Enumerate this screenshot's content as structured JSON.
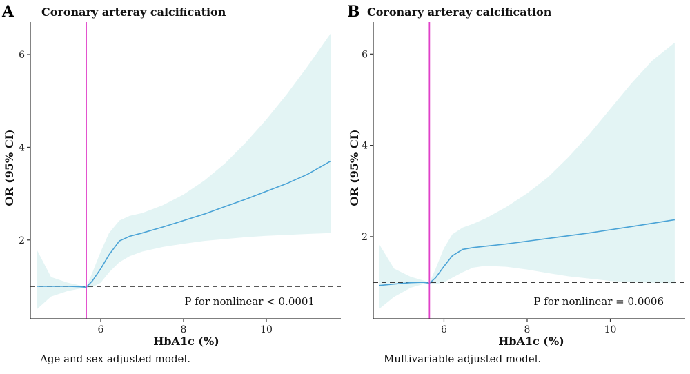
{
  "colors": {
    "ci_band": "#e3f4f4",
    "curve": "#4aa3d6",
    "threshold_line": "#e040c8",
    "reference_line": "#222222"
  },
  "chart_data": [
    {
      "type": "line",
      "panel_label": "A",
      "title": "Coronary arteray calcification",
      "xlabel": "HbA1c (%)",
      "ylabel": "OR (95% CI)",
      "xlim": [
        4.3,
        11.8
      ],
      "ylim": [
        0.3,
        6.7
      ],
      "x_ticks": [
        6,
        8,
        10
      ],
      "y_ticks": [
        2,
        4,
        6
      ],
      "reference_y": 1.0,
      "threshold_x": 5.65,
      "annotation": "P for nonlinear < 0.0001",
      "caption": "Age and sex adjusted model.",
      "series": [
        {
          "role": "estimate",
          "x": [
            4.45,
            4.8,
            5.2,
            5.5,
            5.65,
            5.8,
            6.0,
            6.2,
            6.45,
            6.7,
            7.0,
            7.5,
            8.0,
            8.5,
            9.0,
            9.5,
            10.0,
            10.5,
            11.0,
            11.55
          ],
          "y": [
            1.0,
            1.0,
            1.0,
            0.99,
            0.98,
            1.12,
            1.38,
            1.68,
            1.98,
            2.08,
            2.15,
            2.28,
            2.42,
            2.56,
            2.72,
            2.88,
            3.05,
            3.22,
            3.42,
            3.7
          ]
        },
        {
          "role": "ci_upper",
          "x": [
            4.45,
            4.8,
            5.2,
            5.5,
            5.65,
            5.8,
            6.0,
            6.2,
            6.45,
            6.7,
            7.0,
            7.5,
            8.0,
            8.5,
            9.0,
            9.5,
            10.0,
            10.5,
            11.0,
            11.55
          ],
          "y": [
            1.8,
            1.2,
            1.08,
            1.02,
            0.99,
            1.3,
            1.75,
            2.15,
            2.42,
            2.52,
            2.58,
            2.75,
            2.98,
            3.28,
            3.65,
            4.1,
            4.6,
            5.15,
            5.75,
            6.45
          ]
        },
        {
          "role": "ci_lower",
          "x": [
            4.45,
            4.8,
            5.2,
            5.5,
            5.65,
            5.8,
            6.0,
            6.2,
            6.45,
            6.7,
            7.0,
            7.5,
            8.0,
            8.5,
            9.0,
            9.5,
            10.0,
            10.5,
            11.0,
            11.55
          ],
          "y": [
            0.5,
            0.78,
            0.9,
            0.95,
            0.97,
            0.98,
            1.08,
            1.3,
            1.52,
            1.65,
            1.75,
            1.85,
            1.92,
            1.98,
            2.02,
            2.06,
            2.09,
            2.11,
            2.13,
            2.15
          ]
        }
      ]
    },
    {
      "type": "line",
      "panel_label": "B",
      "title": "Coronary arteray calcification",
      "xlabel": "HbA1c (%)",
      "ylabel": "OR (95% CI)",
      "xlim": [
        4.3,
        11.8
      ],
      "ylim": [
        0.2,
        6.7
      ],
      "x_ticks": [
        6,
        8,
        10
      ],
      "y_ticks": [
        2,
        4,
        6
      ],
      "reference_y": 1.0,
      "threshold_x": 5.65,
      "annotation": "P for nonlinear = 0.0006",
      "caption": "Multivariable adjusted model.",
      "series": [
        {
          "role": "estimate",
          "x": [
            4.45,
            4.8,
            5.2,
            5.5,
            5.65,
            5.8,
            6.0,
            6.2,
            6.45,
            6.7,
            7.0,
            7.5,
            8.0,
            8.5,
            9.0,
            9.5,
            10.0,
            10.5,
            11.0,
            11.55
          ],
          "y": [
            0.93,
            0.96,
            0.99,
            1.0,
            0.98,
            1.1,
            1.35,
            1.58,
            1.72,
            1.76,
            1.79,
            1.84,
            1.9,
            1.96,
            2.02,
            2.08,
            2.15,
            2.22,
            2.29,
            2.37
          ]
        },
        {
          "role": "ci_upper",
          "x": [
            4.45,
            4.8,
            5.2,
            5.5,
            5.65,
            5.8,
            6.0,
            6.2,
            6.45,
            6.7,
            7.0,
            7.5,
            8.0,
            8.5,
            9.0,
            9.5,
            10.0,
            10.5,
            11.0,
            11.55
          ],
          "y": [
            1.82,
            1.3,
            1.12,
            1.04,
            0.99,
            1.3,
            1.75,
            2.05,
            2.2,
            2.28,
            2.4,
            2.65,
            2.95,
            3.3,
            3.75,
            4.25,
            4.8,
            5.35,
            5.85,
            6.25
          ]
        },
        {
          "role": "ci_lower",
          "x": [
            4.45,
            4.8,
            5.2,
            5.5,
            5.65,
            5.8,
            6.0,
            6.2,
            6.45,
            6.7,
            7.0,
            7.5,
            8.0,
            8.5,
            9.0,
            9.5,
            10.0,
            10.5,
            11.0,
            11.55
          ],
          "y": [
            0.42,
            0.68,
            0.88,
            0.96,
            0.97,
            0.96,
            1.0,
            1.1,
            1.22,
            1.32,
            1.36,
            1.34,
            1.28,
            1.2,
            1.13,
            1.08,
            1.03,
            1.0,
            0.99,
            0.98
          ]
        }
      ]
    }
  ]
}
